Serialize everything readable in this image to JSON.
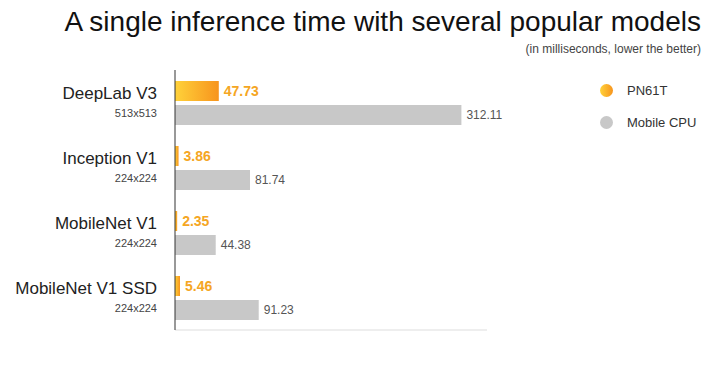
{
  "chart_data": {
    "type": "bar",
    "orientation": "horizontal",
    "title": "A single inference time with several popular models",
    "subtitle": "(in milliseconds, lower the better)",
    "categories": [
      "DeepLab V3\n513x513",
      "Inception V1\n224x224",
      "MobileNet V1\n224x224",
      "MobileNet V1 SSD\n224x224"
    ],
    "series": [
      {
        "name": "PN61T",
        "color": "#f7941d",
        "values": [
          47.73,
          3.86,
          2.35,
          5.46
        ]
      },
      {
        "name": "Mobile CPU",
        "color": "#c8c8c8",
        "values": [
          312.11,
          81.74,
          44.38,
          91.23
        ]
      }
    ],
    "xlim": [
      0,
      340
    ],
    "data_labels": true,
    "tick_labels": "y",
    "legend": "upper right",
    "grid": false
  }
}
